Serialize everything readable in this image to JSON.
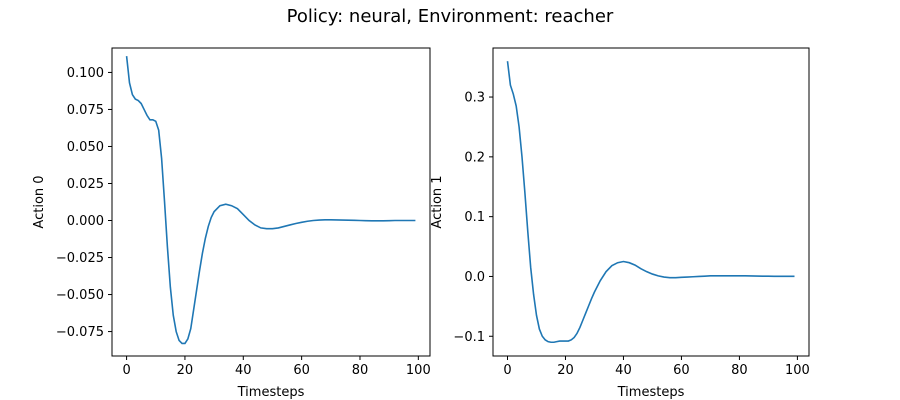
{
  "figure": {
    "title": "Policy: neural, Environment: reacher"
  },
  "chart_data": [
    {
      "type": "line",
      "xlabel": "Timesteps",
      "ylabel": "Action 0",
      "xlim": [
        -5,
        104
      ],
      "ylim": [
        -0.0915,
        0.1165
      ],
      "xticks": [
        "0",
        "20",
        "40",
        "60",
        "80",
        "100"
      ],
      "yticks": [
        "0.100",
        "0.075",
        "0.050",
        "0.025",
        "0.000",
        "−0.025",
        "−0.050",
        "−0.075"
      ],
      "grid": false,
      "color": "#1f77b4",
      "series": [
        {
          "x": [
            0,
            1,
            2,
            3,
            4,
            5,
            6,
            7,
            8,
            9,
            10,
            11,
            12,
            13,
            14,
            15,
            16,
            17,
            18,
            19,
            20,
            21,
            22,
            23,
            24,
            25,
            26,
            27,
            28,
            29,
            30,
            32,
            34,
            36,
            38,
            40,
            42,
            44,
            46,
            48,
            50,
            52,
            54,
            56,
            58,
            60,
            62,
            64,
            66,
            68,
            70,
            72,
            74,
            76,
            78,
            80,
            82,
            84,
            86,
            88,
            90,
            92,
            94,
            96,
            98,
            99
          ],
          "y": [
            0.111,
            0.093,
            0.085,
            0.082,
            0.081,
            0.079,
            0.075,
            0.071,
            0.068,
            0.068,
            0.067,
            0.061,
            0.042,
            0.013,
            -0.018,
            -0.045,
            -0.064,
            -0.075,
            -0.081,
            -0.083,
            -0.083,
            -0.08,
            -0.073,
            -0.06,
            -0.047,
            -0.034,
            -0.022,
            -0.012,
            -0.004,
            0.002,
            0.006,
            0.01,
            0.011,
            0.01,
            0.008,
            0.004,
            0.0,
            -0.003,
            -0.005,
            -0.0055,
            -0.0055,
            -0.005,
            -0.004,
            -0.003,
            -0.002,
            -0.0012,
            -0.0005,
            0.0,
            0.0003,
            0.0005,
            0.0005,
            0.0004,
            0.0003,
            0.0002,
            0.0001,
            0.0,
            -0.0001,
            -0.0002,
            -0.0002,
            -0.0002,
            -0.0001,
            0.0,
            0.0,
            0.0,
            0.0,
            0.0
          ]
        }
      ]
    },
    {
      "type": "line",
      "xlabel": "Timesteps",
      "ylabel": "Action 1",
      "xlim": [
        -5,
        104
      ],
      "ylim": [
        -0.133,
        0.382
      ],
      "xticks": [
        "0",
        "20",
        "40",
        "60",
        "80",
        "100"
      ],
      "yticks": [
        "0.3",
        "0.2",
        "0.1",
        "0.0",
        "−0.1"
      ],
      "grid": false,
      "color": "#1f77b4",
      "series": [
        {
          "x": [
            0,
            1,
            2,
            3,
            4,
            5,
            6,
            7,
            8,
            9,
            10,
            11,
            12,
            13,
            14,
            15,
            16,
            17,
            18,
            19,
            20,
            21,
            22,
            23,
            24,
            25,
            26,
            27,
            28,
            29,
            30,
            32,
            34,
            36,
            38,
            40,
            42,
            44,
            46,
            48,
            50,
            52,
            54,
            56,
            58,
            60,
            62,
            64,
            66,
            68,
            70,
            72,
            74,
            76,
            78,
            80,
            82,
            84,
            86,
            88,
            90,
            92,
            94,
            96,
            98,
            99
          ],
          "y": [
            0.36,
            0.32,
            0.305,
            0.285,
            0.25,
            0.2,
            0.14,
            0.075,
            0.015,
            -0.03,
            -0.065,
            -0.088,
            -0.1,
            -0.106,
            -0.109,
            -0.11,
            -0.11,
            -0.109,
            -0.108,
            -0.108,
            -0.108,
            -0.108,
            -0.106,
            -0.102,
            -0.095,
            -0.085,
            -0.073,
            -0.061,
            -0.049,
            -0.037,
            -0.026,
            -0.007,
            0.008,
            0.018,
            0.023,
            0.025,
            0.023,
            0.019,
            0.013,
            0.008,
            0.004,
            0.001,
            -0.001,
            -0.002,
            -0.002,
            -0.0015,
            -0.001,
            -0.0005,
            0.0,
            0.0005,
            0.001,
            0.001,
            0.001,
            0.001,
            0.001,
            0.001,
            0.001,
            0.0008,
            0.0006,
            0.0005,
            0.0004,
            0.0003,
            0.0003,
            0.0003,
            0.0003,
            0.0003
          ]
        }
      ]
    }
  ]
}
